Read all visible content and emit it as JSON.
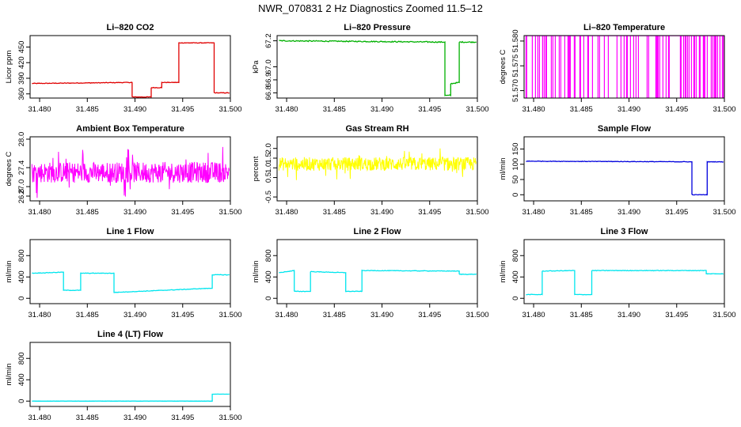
{
  "page_title": "NWR_070831  2 Hz Diagnostics Zoomed 11.5–12",
  "chart_data": [
    {
      "type": "line",
      "title": "Li–820 CO2",
      "ylabel": "Licor ppm",
      "xlim": [
        31.479,
        31.5
      ],
      "ylim": [
        352,
        472
      ],
      "xticks": [
        "31.480",
        "31.485",
        "31.490",
        "31.495",
        "31.500"
      ],
      "yticks": [
        {
          "v": 360,
          "label": "360"
        },
        {
          "v": 390,
          "label": "390"
        },
        {
          "v": 420,
          "label": "420"
        },
        {
          "v": 450,
          "label": "450"
        }
      ],
      "color": "#e00000",
      "noise": 0.6,
      "series": [
        {
          "x": [
            31.4792,
            31.4897,
            31.4897,
            31.4917,
            31.4917,
            31.4928,
            31.4928,
            31.4946,
            31.4946,
            31.4983,
            31.4983,
            31.4999
          ],
          "values": [
            380,
            382,
            354,
            354,
            372,
            372,
            382,
            382,
            458,
            458,
            362,
            362
          ]
        }
      ]
    },
    {
      "type": "line",
      "title": "Li–820 Pressure",
      "ylabel": "kPa",
      "xlim": [
        31.479,
        31.5
      ],
      "ylim": [
        66.76,
        67.24
      ],
      "xticks": [
        "31.480",
        "31.485",
        "31.490",
        "31.495",
        "31.500"
      ],
      "yticks": [
        {
          "v": 66.8,
          "label": "66.8"
        },
        {
          "v": 66.9,
          "label": "66.9"
        },
        {
          "v": 67.0,
          "label": "67.0"
        },
        {
          "v": 67.2,
          "label": "67.2"
        }
      ],
      "color": "#00b000",
      "noise": 0.004,
      "series": [
        {
          "x": [
            31.4792,
            31.4966,
            31.4966,
            31.4972,
            31.4972,
            31.4981,
            31.4981,
            31.4999
          ],
          "values": [
            67.2,
            67.19,
            66.78,
            66.78,
            66.87,
            66.88,
            67.19,
            67.19
          ]
        }
      ]
    },
    {
      "type": "line",
      "title": "Li–820 Temperature",
      "ylabel": "degrees C",
      "xlim": [
        31.479,
        31.5
      ],
      "ylim": [
        51.5685,
        51.5811
      ],
      "xticks": [
        "31.480",
        "31.485",
        "31.490",
        "31.495",
        "31.500"
      ],
      "yticks": [
        {
          "v": 51.57,
          "label": "51.570"
        },
        {
          "v": 51.575,
          "label": "51.575"
        },
        {
          "v": 51.58,
          "label": "51.580"
        }
      ],
      "color": "#ff00ff",
      "pattern": "binary",
      "low": 51.5685,
      "high": 51.5811,
      "x_start": 31.4792,
      "x_end": 31.4999
    },
    {
      "type": "line",
      "title": "Ambient Box Temperature",
      "ylabel": "degrees C",
      "xlim": [
        31.479,
        31.5
      ],
      "ylim": [
        26.7,
        28.05
      ],
      "xticks": [
        "31.480",
        "31.485",
        "31.490",
        "31.495",
        "31.500"
      ],
      "yticks": [
        {
          "v": 26.8,
          "label": "26.8"
        },
        {
          "v": 27.0,
          "label": "27.0"
        },
        {
          "v": 27.4,
          "label": "27.4"
        },
        {
          "v": 28.0,
          "label": "28.0"
        }
      ],
      "color": "#ff00ff",
      "pattern": "noise",
      "center": 27.3,
      "spread": 0.22,
      "x_start": 31.4792,
      "x_end": 31.4999
    },
    {
      "type": "line",
      "title": "Gas Stream RH",
      "ylabel": "percent",
      "xlim": [
        31.479,
        31.5
      ],
      "ylim": [
        -0.7,
        2.6
      ],
      "xticks": [
        "31.480",
        "31.485",
        "31.490",
        "31.495",
        "31.500"
      ],
      "yticks": [
        {
          "v": -0.5,
          "label": "-0.5"
        },
        {
          "v": 0.5,
          "label": "0.5"
        },
        {
          "v": 1.0,
          "label": "1.0"
        },
        {
          "v": 1.5,
          "label": "1.5"
        },
        {
          "v": 2.0,
          "label": "2.0"
        }
      ],
      "color": "#ffff00",
      "pattern": "noise",
      "center": 1.2,
      "spread": 0.35,
      "x_start": 31.4792,
      "x_end": 31.4999
    },
    {
      "type": "line",
      "title": "Sample Flow",
      "ylabel": "ml/min",
      "xlim": [
        31.479,
        31.5
      ],
      "ylim": [
        -20,
        190
      ],
      "xticks": [
        "31.480",
        "31.485",
        "31.490",
        "31.495",
        "31.500"
      ],
      "yticks": [
        {
          "v": 0,
          "label": "0"
        },
        {
          "v": 50,
          "label": "50"
        },
        {
          "v": 100,
          "label": "100"
        },
        {
          "v": 150,
          "label": "150"
        }
      ],
      "color": "#0000dd",
      "noise": 0.8,
      "series": [
        {
          "x": [
            31.4792,
            31.4966,
            31.4966,
            31.4982,
            31.4982,
            31.4999
          ],
          "values": [
            110,
            108,
            0,
            0,
            108,
            108
          ]
        }
      ]
    },
    {
      "type": "line",
      "title": "Line 1 Flow",
      "ylabel": "ml/min",
      "xlim": [
        31.479,
        31.5
      ],
      "ylim": [
        -100,
        1100
      ],
      "xticks": [
        "31.480",
        "31.485",
        "31.490",
        "31.495",
        "31.500"
      ],
      "yticks": [
        {
          "v": 0,
          "label": "0"
        },
        {
          "v": 400,
          "label": "400"
        },
        {
          "v": 800,
          "label": "800"
        }
      ],
      "color": "#00e5ee",
      "noise": 5,
      "series": [
        {
          "x": [
            31.4792,
            31.4825,
            31.4825,
            31.4843,
            31.4843,
            31.4878,
            31.4878,
            31.4981,
            31.4981,
            31.4999
          ],
          "values": [
            470,
            490,
            150,
            150,
            470,
            470,
            110,
            190,
            440,
            440
          ]
        }
      ]
    },
    {
      "type": "line",
      "title": "Line 2 Flow",
      "ylabel": "ml/min",
      "xlim": [
        31.479,
        31.5
      ],
      "ylim": [
        -100,
        1100
      ],
      "xticks": [
        "31.480",
        "31.485",
        "31.490",
        "31.495",
        "31.500"
      ],
      "yticks": [
        {
          "v": 0,
          "label": "0"
        },
        {
          "v": 400,
          "label": "400"
        },
        {
          "v": 800,
          "label": "800"
        }
      ],
      "color": "#00e5ee",
      "noise": 5,
      "series": [
        {
          "x": [
            31.4792,
            31.4808,
            31.4808,
            31.4825,
            31.4825,
            31.4862,
            31.4862,
            31.4879,
            31.4879,
            31.4981,
            31.4981,
            31.4999
          ],
          "values": [
            480,
            520,
            130,
            130,
            500,
            480,
            130,
            130,
            520,
            510,
            450,
            450
          ]
        }
      ]
    },
    {
      "type": "line",
      "title": "Line 3 Flow",
      "ylabel": "ml/min",
      "xlim": [
        31.479,
        31.5
      ],
      "ylim": [
        -100,
        1100
      ],
      "xticks": [
        "31.480",
        "31.485",
        "31.490",
        "31.495",
        "31.500"
      ],
      "yticks": [
        {
          "v": 0,
          "label": "0"
        },
        {
          "v": 400,
          "label": "400"
        },
        {
          "v": 800,
          "label": "800"
        }
      ],
      "color": "#00e5ee",
      "noise": 5,
      "series": [
        {
          "x": [
            31.4792,
            31.4809,
            31.4809,
            31.4843,
            31.4843,
            31.4861,
            31.4861,
            31.4981,
            31.4981,
            31.4999
          ],
          "values": [
            70,
            70,
            510,
            520,
            70,
            70,
            520,
            520,
            460,
            460
          ]
        }
      ]
    },
    {
      "type": "line",
      "title": "Line 4 (LT) Flow",
      "ylabel": "ml/min",
      "xlim": [
        31.479,
        31.5
      ],
      "ylim": [
        -100,
        1100
      ],
      "xticks": [
        "31.480",
        "31.485",
        "31.490",
        "31.495",
        "31.500"
      ],
      "yticks": [
        {
          "v": 0,
          "label": "0"
        },
        {
          "v": 400,
          "label": "400"
        },
        {
          "v": 800,
          "label": "800"
        }
      ],
      "color": "#00e5ee",
      "noise": 1,
      "series": [
        {
          "x": [
            31.4792,
            31.4981,
            31.4981,
            31.4999
          ],
          "values": [
            0,
            0,
            130,
            130
          ]
        }
      ]
    }
  ]
}
